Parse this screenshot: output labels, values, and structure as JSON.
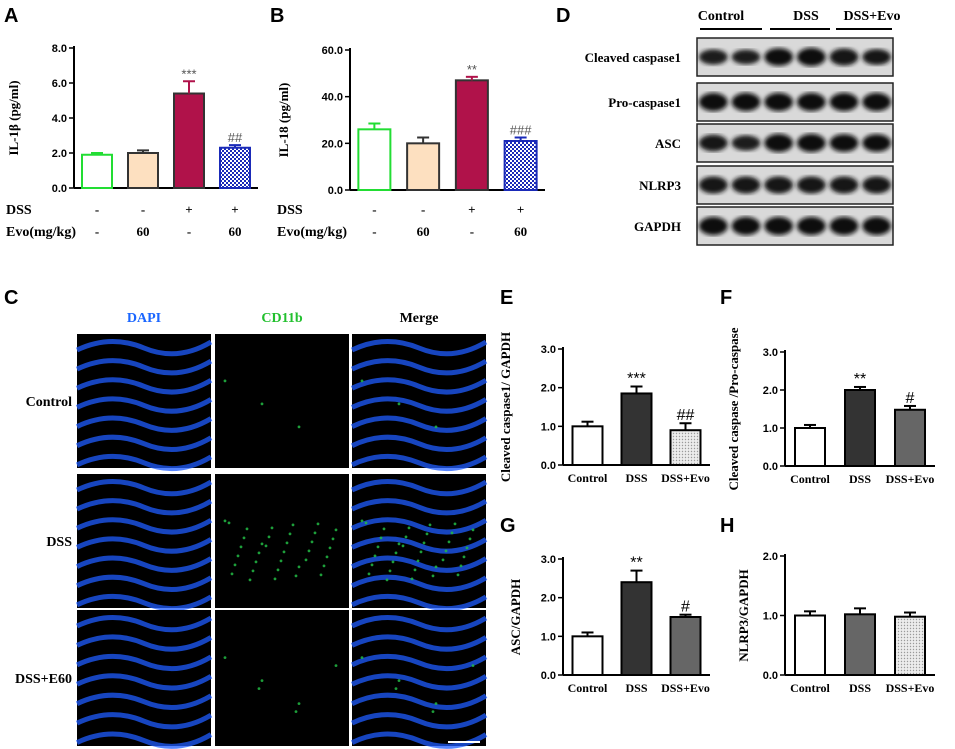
{
  "panels": {
    "A": "A",
    "B": "B",
    "C": "C",
    "D": "D",
    "E": "E",
    "F": "F",
    "G": "G",
    "H": "H"
  },
  "colors": {
    "green": "#22dd33",
    "peach": "#fde0c0",
    "crimson": "#b0124a",
    "navy": "#1a2ab8",
    "dark_gray": "#333333",
    "mid_gray": "#666666",
    "light_dotted": "#d8d8d8",
    "dapi_blue": "#1f5cff",
    "cd11b_green": "#22bb44"
  },
  "treatment_table": {
    "dss_label": "DSS",
    "evo_label": "Evo(mg/kg)",
    "dss": [
      "-",
      "-",
      "+",
      "+"
    ],
    "evo": [
      "-",
      "60",
      "-",
      "60"
    ]
  },
  "chart_data": [
    {
      "panel": "A",
      "type": "bar",
      "ylabel": "IL-1β (pg/ml)",
      "ylim": [
        0,
        8
      ],
      "ticks": [
        "0.0",
        "2.0",
        "4.0",
        "6.0",
        "8.0"
      ],
      "values": [
        1.9,
        2.0,
        5.4,
        2.3
      ],
      "errors": [
        0.1,
        0.15,
        0.7,
        0.15
      ],
      "significance": [
        "",
        "",
        "***",
        "##"
      ],
      "fills": [
        "white",
        "peach",
        "crimson",
        "navy-check"
      ],
      "strokes": [
        "#22dd33",
        "#333333",
        "#333333",
        "#1a2ab8"
      ]
    },
    {
      "panel": "B",
      "type": "bar",
      "ylabel": "IL-18 (pg/ml)",
      "ylim": [
        0,
        60
      ],
      "ticks": [
        "0.0",
        "20.0",
        "40.0",
        "60.0"
      ],
      "values": [
        26,
        20,
        47,
        21
      ],
      "errors": [
        2.5,
        2.5,
        1.5,
        1.5
      ],
      "significance": [
        "",
        "",
        "**",
        "###"
      ],
      "fills": [
        "white",
        "peach",
        "crimson",
        "navy-check"
      ],
      "strokes": [
        "#22dd33",
        "#333333",
        "#333333",
        "#1a2ab8"
      ]
    },
    {
      "panel": "E",
      "type": "bar",
      "categories": [
        "Control",
        "DSS",
        "DSS+Evo"
      ],
      "ylabel": "Cleaved caspase1/ GAPDH",
      "ylim": [
        0,
        3
      ],
      "ticks": [
        "0.0",
        "1.0",
        "2.0",
        "3.0"
      ],
      "values": [
        1.0,
        1.85,
        0.9
      ],
      "errors": [
        0.12,
        0.18,
        0.18
      ],
      "significance": [
        "",
        "***",
        "##"
      ],
      "fills": [
        "white",
        "dark",
        "dotted"
      ]
    },
    {
      "panel": "F",
      "type": "bar",
      "categories": [
        "Control",
        "DSS",
        "DSS+Evo"
      ],
      "ylabel": "Cleaved caspase /Pro-caspase",
      "ylim": [
        0,
        3
      ],
      "ticks": [
        "0.0",
        "1.0",
        "2.0",
        "3.0"
      ],
      "values": [
        1.0,
        2.0,
        1.48
      ],
      "errors": [
        0.08,
        0.08,
        0.1
      ],
      "significance": [
        "",
        "**",
        "#"
      ],
      "fills": [
        "white",
        "dark",
        "mid"
      ]
    },
    {
      "panel": "G",
      "type": "bar",
      "categories": [
        "Control",
        "DSS",
        "DSS+Evo"
      ],
      "ylabel": "ASC/GAPDH",
      "ylim": [
        0,
        3
      ],
      "ticks": [
        "0.0",
        "1.0",
        "2.0",
        "3.0"
      ],
      "values": [
        1.0,
        2.4,
        1.5
      ],
      "errors": [
        0.1,
        0.3,
        0.06
      ],
      "significance": [
        "",
        "**",
        "#"
      ],
      "fills": [
        "white",
        "dark",
        "mid"
      ]
    },
    {
      "panel": "H",
      "type": "bar",
      "categories": [
        "Control",
        "DSS",
        "DSS+Evo"
      ],
      "ylabel": "NLRP3/GAPDH",
      "ylim": [
        0,
        2
      ],
      "ticks": [
        "0.0",
        "1.0",
        "2.0"
      ],
      "values": [
        1.0,
        1.02,
        0.98
      ],
      "errors": [
        0.07,
        0.1,
        0.07
      ],
      "significance": [
        "",
        "",
        ""
      ],
      "fills": [
        "white",
        "mid",
        "dotted"
      ]
    }
  ],
  "western_blot": {
    "groups": [
      "Control",
      "DSS",
      "DSS+Evo"
    ],
    "rows": [
      {
        "label": "Cleaved caspase1",
        "intensities": [
          0.6,
          0.55,
          0.8,
          0.85,
          0.75,
          0.65
        ]
      },
      {
        "label": "Pro-caspase1",
        "intensities": [
          0.85,
          0.85,
          0.85,
          0.85,
          0.85,
          0.85
        ]
      },
      {
        "label": "ASC",
        "intensities": [
          0.7,
          0.6,
          0.85,
          0.85,
          0.8,
          0.8
        ]
      },
      {
        "label": "NLRP3",
        "intensities": [
          0.75,
          0.75,
          0.75,
          0.75,
          0.75,
          0.75
        ]
      },
      {
        "label": "GAPDH",
        "intensities": [
          0.85,
          0.85,
          0.85,
          0.85,
          0.85,
          0.85
        ]
      }
    ]
  },
  "microscopy": {
    "columns": [
      "DAPI",
      "CD11b",
      "Merge"
    ],
    "rows": [
      "Control",
      "DSS",
      "DSS+E60"
    ],
    "cd11b_signal": [
      0.05,
      0.6,
      0.1
    ]
  }
}
